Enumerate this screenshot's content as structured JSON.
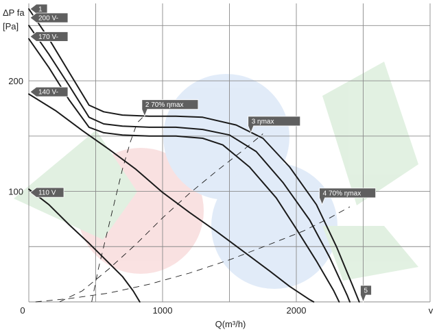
{
  "chart_data": {
    "type": "line",
    "ylabel_lines": [
      "ΔP fa",
      "[Pa]"
    ],
    "xlabel": "Q(m³/h)",
    "x_unit_label": "v",
    "xlim": [
      0,
      3000
    ],
    "ylim": [
      0,
      270
    ],
    "x_ticks": [
      0,
      1000,
      2000
    ],
    "x_tick_labels": [
      "0",
      "1000",
      "2000"
    ],
    "y_ticks": [
      100,
      200
    ],
    "y_tick_labels": [
      "100",
      "200"
    ],
    "grid_x": [
      0,
      500,
      1000,
      1500,
      2000,
      2500,
      3000
    ],
    "grid_y": [
      0,
      50,
      100,
      150,
      200,
      250
    ],
    "grid": true,
    "series": [
      {
        "name": "200 V-",
        "points": [
          [
            0,
            265
          ],
          [
            150,
            238
          ],
          [
            300,
            208
          ],
          [
            450,
            178
          ],
          [
            560,
            172
          ],
          [
            700,
            169
          ],
          [
            900,
            168
          ],
          [
            1100,
            168
          ],
          [
            1300,
            167
          ],
          [
            1550,
            160
          ],
          [
            1750,
            148
          ],
          [
            1950,
            122
          ],
          [
            2150,
            88
          ],
          [
            2300,
            50
          ],
          [
            2420,
            15
          ],
          [
            2470,
            0
          ]
        ]
      },
      {
        "name": "170 V-",
        "points": [
          [
            0,
            250
          ],
          [
            150,
            224
          ],
          [
            300,
            196
          ],
          [
            450,
            167
          ],
          [
            560,
            161
          ],
          [
            700,
            159
          ],
          [
            900,
            158
          ],
          [
            1100,
            158
          ],
          [
            1300,
            156
          ],
          [
            1500,
            151
          ],
          [
            1700,
            136
          ],
          [
            1900,
            108
          ],
          [
            2100,
            74
          ],
          [
            2250,
            40
          ],
          [
            2380,
            6
          ],
          [
            2400,
            0
          ]
        ]
      },
      {
        "name": "140 V-",
        "points": [
          [
            0,
            238
          ],
          [
            150,
            212
          ],
          [
            300,
            183
          ],
          [
            450,
            158
          ],
          [
            560,
            153
          ],
          [
            700,
            151
          ],
          [
            900,
            150
          ],
          [
            1100,
            150
          ],
          [
            1300,
            148
          ],
          [
            1450,
            142
          ],
          [
            1650,
            122
          ],
          [
            1850,
            94
          ],
          [
            2000,
            66
          ],
          [
            2150,
            37
          ],
          [
            2280,
            10
          ],
          [
            2320,
            0
          ]
        ]
      },
      {
        "name": "110 V",
        "points": [
          [
            0,
            188
          ],
          [
            200,
            173
          ],
          [
            400,
            155
          ],
          [
            600,
            138
          ],
          [
            800,
            120
          ],
          [
            1000,
            99
          ],
          [
            1200,
            81
          ],
          [
            1400,
            64
          ],
          [
            1600,
            46
          ],
          [
            1800,
            28
          ],
          [
            1950,
            14
          ],
          [
            2100,
            2
          ],
          [
            2130,
            0
          ]
        ]
      },
      {
        "name": "",
        "points": [
          [
            0,
            102
          ],
          [
            150,
            88
          ],
          [
            300,
            70
          ],
          [
            450,
            53
          ],
          [
            600,
            35
          ],
          [
            700,
            23
          ],
          [
            780,
            10
          ],
          [
            830,
            0
          ]
        ]
      }
    ],
    "dashed_lines": [
      {
        "points": [
          [
            470,
            0
          ],
          [
            520,
            30
          ],
          [
            580,
            60
          ],
          [
            640,
            90
          ],
          [
            700,
            120
          ],
          [
            760,
            145
          ],
          [
            810,
            162
          ],
          [
            860,
            168
          ]
        ]
      },
      {
        "points": [
          [
            230,
            0
          ],
          [
            400,
            10
          ],
          [
            600,
            30
          ],
          [
            800,
            52
          ],
          [
            1000,
            76
          ],
          [
            1200,
            98
          ],
          [
            1400,
            118
          ],
          [
            1600,
            137
          ],
          [
            1750,
            152
          ]
        ]
      },
      {
        "points": [
          [
            50,
            0
          ],
          [
            300,
            3
          ],
          [
            600,
            8
          ],
          [
            900,
            16
          ],
          [
            1200,
            26
          ],
          [
            1500,
            38
          ],
          [
            1800,
            52
          ],
          [
            2050,
            64
          ],
          [
            2250,
            76
          ],
          [
            2400,
            86
          ]
        ]
      }
    ],
    "tags": [
      {
        "label": "1",
        "x": 0,
        "y": 265,
        "kind": "left"
      },
      {
        "label": "200 V-",
        "x": 0,
        "y": 257,
        "kind": "left"
      },
      {
        "label": "170 V-",
        "x": 0,
        "y": 240,
        "kind": "left"
      },
      {
        "label": "140 V-",
        "x": 0,
        "y": 190,
        "kind": "left"
      },
      {
        "label": "110 V",
        "x": 0,
        "y": 99,
        "kind": "left"
      },
      {
        "label": "2   70% ηmax",
        "x": 866,
        "y": 168,
        "kind": "callout"
      },
      {
        "label": "3      ηmax",
        "x": 1660,
        "y": 153,
        "kind": "callout"
      },
      {
        "label": "4   70% ηmax",
        "x": 2193,
        "y": 88,
        "kind": "callout"
      },
      {
        "label": "5",
        "x": 2500,
        "y": 0,
        "kind": "callout"
      }
    ]
  }
}
